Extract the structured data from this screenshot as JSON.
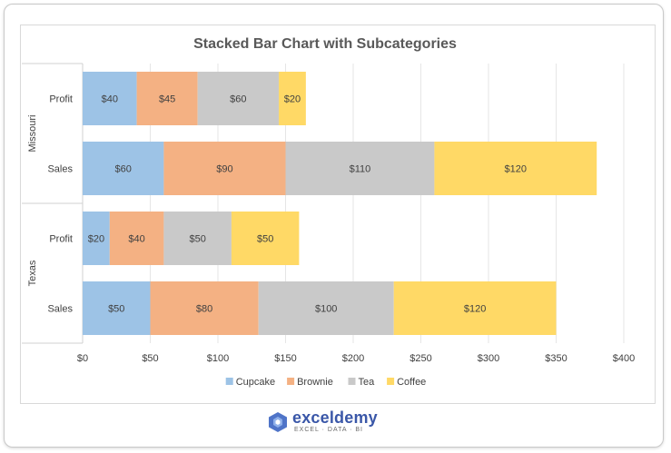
{
  "brand": {
    "name": "exceldemy",
    "tagline": "EXCEL · DATA · BI"
  },
  "chart_data": {
    "type": "bar",
    "orientation": "horizontal",
    "stacked": true,
    "title": "Stacked Bar Chart with Subcategories",
    "groups": [
      {
        "name": "Missouri",
        "categories": [
          "Profit",
          "Sales"
        ]
      },
      {
        "name": "Texas",
        "categories": [
          "Profit",
          "Sales"
        ]
      }
    ],
    "categories": [
      "Missouri - Profit",
      "Missouri - Sales",
      "Texas - Profit",
      "Texas - Sales"
    ],
    "series": [
      {
        "name": "Cupcake",
        "color": "#9dc3e6",
        "values": [
          40,
          60,
          20,
          50
        ],
        "labels": [
          "$40",
          "$60",
          "$20",
          "$50"
        ]
      },
      {
        "name": "Brownie",
        "color": "#f4b183",
        "values": [
          45,
          90,
          40,
          80
        ],
        "labels": [
          "$45",
          "$90",
          "$40",
          "$80"
        ]
      },
      {
        "name": "Tea",
        "color": "#c9c9c9",
        "values": [
          60,
          110,
          50,
          100
        ],
        "labels": [
          "$60",
          "$110",
          "$50",
          "$100"
        ]
      },
      {
        "name": "Coffee",
        "color": "#ffd966",
        "values": [
          20,
          120,
          50,
          120
        ],
        "labels": [
          "$20",
          "$120",
          "$50",
          "$120"
        ]
      }
    ],
    "x_ticks": [
      "$0",
      "$50",
      "$100",
      "$150",
      "$200",
      "$250",
      "$300",
      "$350",
      "$400"
    ],
    "xlim": [
      0,
      400
    ],
    "grid": true,
    "legend": "bottom"
  }
}
